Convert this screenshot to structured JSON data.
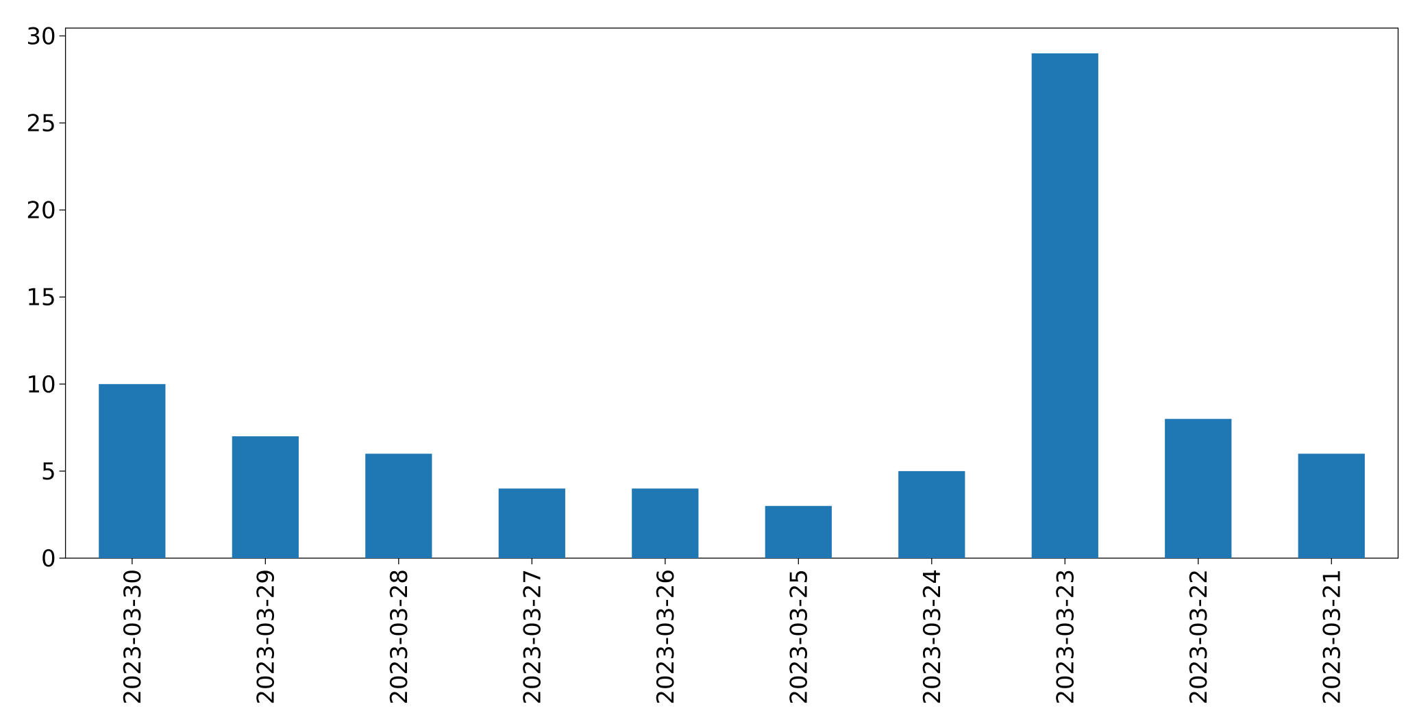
{
  "chart_data": {
    "type": "bar",
    "categories": [
      "2023-03-30",
      "2023-03-29",
      "2023-03-28",
      "2023-03-27",
      "2023-03-26",
      "2023-03-25",
      "2023-03-24",
      "2023-03-23",
      "2023-03-22",
      "2023-03-21"
    ],
    "values": [
      10,
      7,
      6,
      4,
      4,
      3,
      5,
      29,
      8,
      6
    ],
    "color": "#1f77b4",
    "ylim": [
      0,
      30.45
    ],
    "yticks": [
      0,
      5,
      10,
      15,
      20,
      25,
      30
    ],
    "grid": false
  }
}
